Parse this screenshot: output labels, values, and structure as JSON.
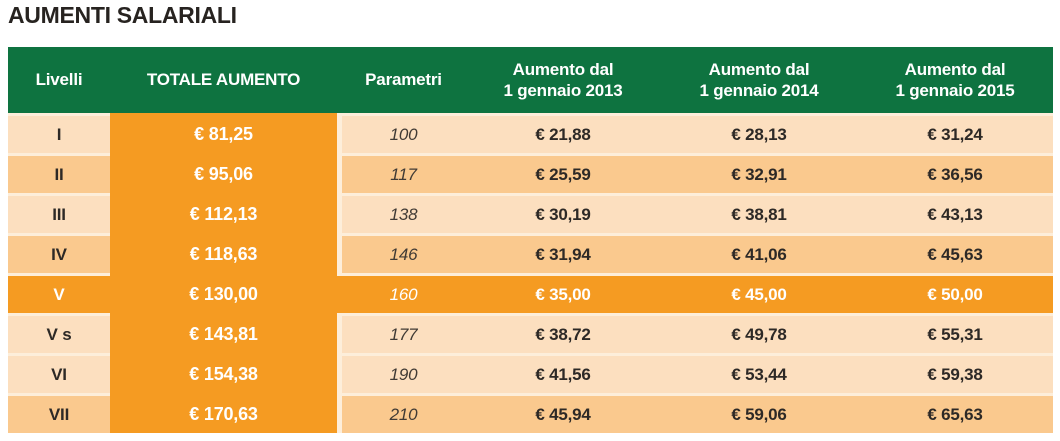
{
  "title": "AUMENTI SALARIALI",
  "colors": {
    "header_green": "#0E7340",
    "accent_orange": "#F59B22",
    "row_light": "#FCDFBF",
    "row_dark": "#FAC98E",
    "gap_cream": "#FDEEDA",
    "text_dark": "#2D2926",
    "header_text": "#FFFFFF"
  },
  "table": {
    "headers": [
      "Livelli",
      "TOTALE AUMENTO",
      "Parametri",
      {
        "line1": "Aumento dal",
        "line2": "1 gennaio 2013"
      },
      {
        "line1": "Aumento dal",
        "line2": "1 gennaio 2014"
      },
      {
        "line1": "Aumento dal",
        "line2": "1 gennaio 2015"
      }
    ],
    "rows": [
      {
        "livello": "I",
        "totale": "€ 81,25",
        "parametro": "100",
        "a2013": "€ 21,88",
        "a2014": "€ 28,13",
        "a2015": "€ 31,24",
        "variant": "light"
      },
      {
        "livello": "II",
        "totale": "€ 95,06",
        "parametro": "117",
        "a2013": "€ 25,59",
        "a2014": "€ 32,91",
        "a2015": "€ 36,56",
        "variant": "dark"
      },
      {
        "livello": "III",
        "totale": "€ 112,13",
        "parametro": "138",
        "a2013": "€ 30,19",
        "a2014": "€ 38,81",
        "a2015": "€ 43,13",
        "variant": "light"
      },
      {
        "livello": "IV",
        "totale": "€ 118,63",
        "parametro": "146",
        "a2013": "€ 31,94",
        "a2014": "€ 41,06",
        "a2015": "€ 45,63",
        "variant": "dark"
      },
      {
        "livello": "V",
        "totale": "€ 130,00",
        "parametro": "160",
        "a2013": "€ 35,00",
        "a2014": "€ 45,00",
        "a2015": "€ 50,00",
        "variant": "highlight"
      },
      {
        "livello": "V s",
        "totale": "€ 143,81",
        "parametro": "177",
        "a2013": "€ 38,72",
        "a2014": "€ 49,78",
        "a2015": "€ 55,31",
        "variant": "light"
      },
      {
        "livello": "VI",
        "totale": "€ 154,38",
        "parametro": "190",
        "a2013": "€ 41,56",
        "a2014": "€ 53,44",
        "a2015": "€ 59,38",
        "variant": "light"
      },
      {
        "livello": "VII",
        "totale": "€ 170,63",
        "parametro": "210",
        "a2013": "€ 45,94",
        "a2014": "€ 59,06",
        "a2015": "€ 65,63",
        "variant": "dark"
      }
    ]
  }
}
